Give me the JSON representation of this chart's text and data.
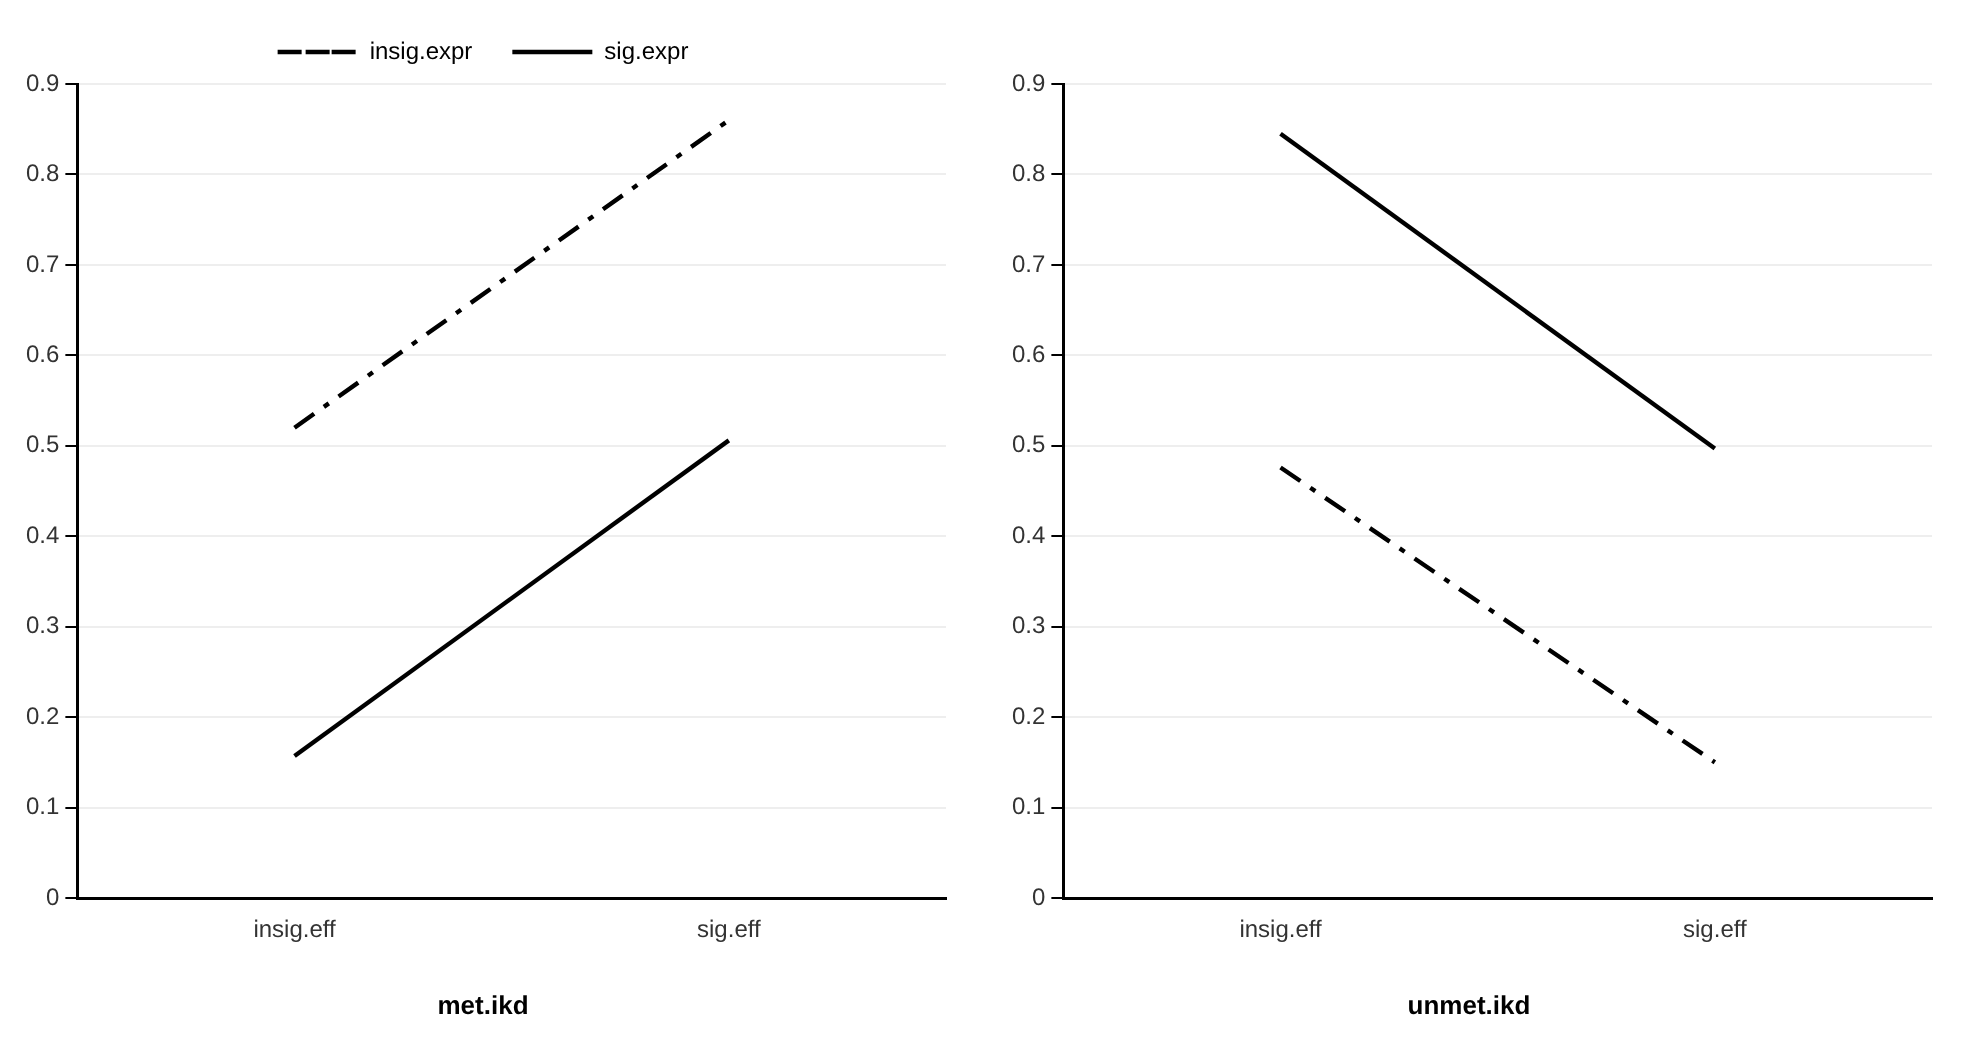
{
  "chart_data": [
    {
      "type": "line",
      "title": "met.ikd",
      "categories": [
        "insig.eff",
        "sig.eff"
      ],
      "ylim": [
        0,
        0.9
      ],
      "yticks": [
        0,
        0.1,
        0.2,
        0.3,
        0.4,
        0.5,
        0.6,
        0.7,
        0.8,
        0.9
      ],
      "grid": "y",
      "legend": "top",
      "marker": "none",
      "series": [
        {
          "name": "insig.expr",
          "color": "#000000",
          "line_style": "dashed",
          "values": [
            0.52,
            0.86
          ]
        },
        {
          "name": "sig.expr",
          "color": "#000000",
          "line_style": "solid",
          "values": [
            0.157,
            0.506
          ]
        }
      ]
    },
    {
      "type": "line",
      "title": "unmet.ikd",
      "categories": [
        "insig.eff",
        "sig.eff"
      ],
      "ylim": [
        0,
        0.9
      ],
      "yticks": [
        0,
        0.1,
        0.2,
        0.3,
        0.4,
        0.5,
        0.6,
        0.7,
        0.8,
        0.9
      ],
      "grid": "y",
      "marker": "none",
      "series": [
        {
          "color": "#000000",
          "line_style": "dashed",
          "values": [
            0.476,
            0.15
          ]
        },
        {
          "color": "#000000",
          "line_style": "solid",
          "values": [
            0.845,
            0.497
          ]
        }
      ]
    }
  ]
}
